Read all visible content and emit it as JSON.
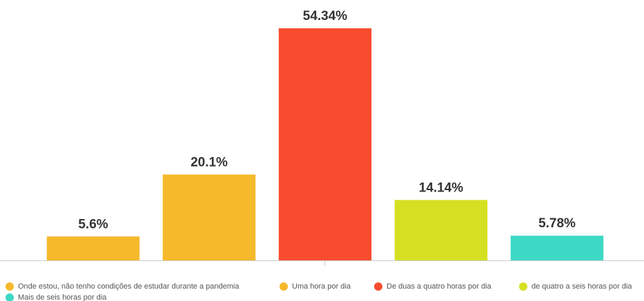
{
  "chart_data": {
    "type": "bar",
    "categories": [
      "Onde estou, não tenho condições de estudar durante a pandemia",
      "Uma hora por dia",
      "De duas a quatro horas por dia",
      "de quatro a seis horas por dia",
      "Mais de seis horas por dia"
    ],
    "values": [
      5.6,
      20.1,
      54.34,
      14.14,
      5.78
    ],
    "value_labels": [
      "5.6%",
      "20.1%",
      "54.34%",
      "14.14%",
      "5.78%"
    ],
    "colors": [
      "#f6b92b",
      "#f6b92b",
      "#f84c2e",
      "#d6e022",
      "#3dd9c5"
    ],
    "ylim": [
      0,
      60
    ]
  }
}
